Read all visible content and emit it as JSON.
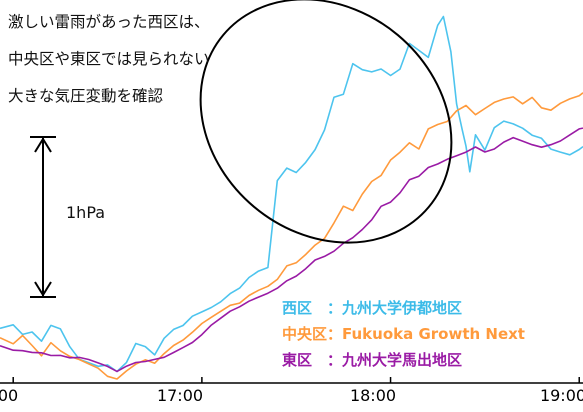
{
  "chart_data": {
    "type": "line",
    "title": "",
    "xlabel": "",
    "ylabel": "",
    "x_ticks": [
      "00",
      "17:00",
      "18:00",
      "19:00"
    ],
    "x_tick_hours": [
      16.0,
      17.0,
      18.0,
      19.0
    ],
    "xlim": [
      15.93,
      19.02
    ],
    "ylim": [
      0,
      2.9
    ],
    "grid": false,
    "legend_position": "bottom-right",
    "scale_bar": {
      "label": "1hPa",
      "value": 1.0,
      "from": 0.6,
      "to": 1.6
    },
    "series": [
      {
        "name": "西区\t：九州大学伊都地区",
        "color": "#4dc4ee",
        "points": [
          [
            15.93,
            0.42
          ],
          [
            16.0,
            0.45
          ],
          [
            16.05,
            0.38
          ],
          [
            16.1,
            0.4
          ],
          [
            16.15,
            0.33
          ],
          [
            16.2,
            0.45
          ],
          [
            16.25,
            0.42
          ],
          [
            16.3,
            0.28
          ],
          [
            16.35,
            0.18
          ],
          [
            16.4,
            0.15
          ],
          [
            16.45,
            0.12
          ],
          [
            16.5,
            0.13
          ],
          [
            16.55,
            0.08
          ],
          [
            16.6,
            0.15
          ],
          [
            16.65,
            0.3
          ],
          [
            16.7,
            0.28
          ],
          [
            16.75,
            0.22
          ],
          [
            16.8,
            0.35
          ],
          [
            16.85,
            0.42
          ],
          [
            16.9,
            0.45
          ],
          [
            16.95,
            0.52
          ],
          [
            17.0,
            0.55
          ],
          [
            17.05,
            0.58
          ],
          [
            17.1,
            0.62
          ],
          [
            17.15,
            0.68
          ],
          [
            17.2,
            0.72
          ],
          [
            17.25,
            0.8
          ],
          [
            17.3,
            0.85
          ],
          [
            17.35,
            0.88
          ],
          [
            17.4,
            1.55
          ],
          [
            17.45,
            1.65
          ],
          [
            17.5,
            1.62
          ],
          [
            17.55,
            1.7
          ],
          [
            17.6,
            1.8
          ],
          [
            17.65,
            1.95
          ],
          [
            17.7,
            2.2
          ],
          [
            17.75,
            2.22
          ],
          [
            17.8,
            2.45
          ],
          [
            17.85,
            2.4
          ],
          [
            17.9,
            2.38
          ],
          [
            17.95,
            2.4
          ],
          [
            18.0,
            2.35
          ],
          [
            18.05,
            2.4
          ],
          [
            18.1,
            2.6
          ],
          [
            18.15,
            2.55
          ],
          [
            18.2,
            2.5
          ],
          [
            18.25,
            2.75
          ],
          [
            18.28,
            2.82
          ],
          [
            18.32,
            2.55
          ],
          [
            18.35,
            2.15
          ],
          [
            18.38,
            1.95
          ],
          [
            18.4,
            1.82
          ],
          [
            18.42,
            1.62
          ],
          [
            18.45,
            1.9
          ],
          [
            18.5,
            1.78
          ],
          [
            18.55,
            1.95
          ],
          [
            18.6,
            2.0
          ],
          [
            18.65,
            1.98
          ],
          [
            18.7,
            1.95
          ],
          [
            18.75,
            1.9
          ],
          [
            18.8,
            1.88
          ],
          [
            18.85,
            1.8
          ],
          [
            18.9,
            1.78
          ],
          [
            18.95,
            1.76
          ],
          [
            19.0,
            1.8
          ],
          [
            19.02,
            1.82
          ]
        ]
      },
      {
        "name": "中央区：Fukuoka Growth Next",
        "color": "#ff9a3c",
        "points": [
          [
            15.93,
            0.35
          ],
          [
            16.0,
            0.3
          ],
          [
            16.05,
            0.36
          ],
          [
            16.1,
            0.28
          ],
          [
            16.15,
            0.2
          ],
          [
            16.2,
            0.3
          ],
          [
            16.25,
            0.24
          ],
          [
            16.3,
            0.2
          ],
          [
            16.35,
            0.18
          ],
          [
            16.4,
            0.15
          ],
          [
            16.45,
            0.12
          ],
          [
            16.5,
            0.06
          ],
          [
            16.55,
            0.04
          ],
          [
            16.6,
            0.1
          ],
          [
            16.65,
            0.15
          ],
          [
            16.7,
            0.18
          ],
          [
            16.75,
            0.15
          ],
          [
            16.8,
            0.22
          ],
          [
            16.85,
            0.28
          ],
          [
            16.9,
            0.32
          ],
          [
            16.95,
            0.38
          ],
          [
            17.0,
            0.45
          ],
          [
            17.05,
            0.5
          ],
          [
            17.1,
            0.55
          ],
          [
            17.15,
            0.6
          ],
          [
            17.2,
            0.62
          ],
          [
            17.25,
            0.68
          ],
          [
            17.3,
            0.72
          ],
          [
            17.35,
            0.75
          ],
          [
            17.4,
            0.8
          ],
          [
            17.45,
            0.9
          ],
          [
            17.5,
            0.92
          ],
          [
            17.55,
            0.98
          ],
          [
            17.6,
            1.05
          ],
          [
            17.65,
            1.1
          ],
          [
            17.7,
            1.22
          ],
          [
            17.75,
            1.35
          ],
          [
            17.8,
            1.32
          ],
          [
            17.85,
            1.45
          ],
          [
            17.9,
            1.55
          ],
          [
            17.95,
            1.6
          ],
          [
            18.0,
            1.72
          ],
          [
            18.05,
            1.78
          ],
          [
            18.1,
            1.85
          ],
          [
            18.15,
            1.8
          ],
          [
            18.2,
            1.95
          ],
          [
            18.25,
            1.98
          ],
          [
            18.3,
            2.0
          ],
          [
            18.35,
            2.08
          ],
          [
            18.4,
            2.12
          ],
          [
            18.45,
            2.05
          ],
          [
            18.5,
            2.1
          ],
          [
            18.55,
            2.15
          ],
          [
            18.6,
            2.18
          ],
          [
            18.65,
            2.2
          ],
          [
            18.7,
            2.15
          ],
          [
            18.75,
            2.2
          ],
          [
            18.8,
            2.12
          ],
          [
            18.85,
            2.1
          ],
          [
            18.9,
            2.15
          ],
          [
            18.95,
            2.18
          ],
          [
            19.0,
            2.2
          ],
          [
            19.02,
            2.22
          ]
        ]
      },
      {
        "name": "東区\t：九州大学馬出地区",
        "color": "#9a1ba5",
        "points": [
          [
            15.93,
            0.28
          ],
          [
            16.0,
            0.25
          ],
          [
            16.05,
            0.25
          ],
          [
            16.1,
            0.24
          ],
          [
            16.15,
            0.24
          ],
          [
            16.2,
            0.22
          ],
          [
            16.25,
            0.22
          ],
          [
            16.3,
            0.2
          ],
          [
            16.35,
            0.2
          ],
          [
            16.4,
            0.18
          ],
          [
            16.45,
            0.15
          ],
          [
            16.5,
            0.12
          ],
          [
            16.55,
            0.08
          ],
          [
            16.6,
            0.12
          ],
          [
            16.65,
            0.15
          ],
          [
            16.7,
            0.16
          ],
          [
            16.75,
            0.18
          ],
          [
            16.8,
            0.2
          ],
          [
            16.85,
            0.24
          ],
          [
            16.9,
            0.28
          ],
          [
            16.95,
            0.32
          ],
          [
            17.0,
            0.38
          ],
          [
            17.05,
            0.45
          ],
          [
            17.1,
            0.5
          ],
          [
            17.15,
            0.55
          ],
          [
            17.2,
            0.58
          ],
          [
            17.25,
            0.62
          ],
          [
            17.3,
            0.65
          ],
          [
            17.35,
            0.68
          ],
          [
            17.4,
            0.72
          ],
          [
            17.45,
            0.78
          ],
          [
            17.5,
            0.82
          ],
          [
            17.55,
            0.88
          ],
          [
            17.6,
            0.95
          ],
          [
            17.65,
            0.98
          ],
          [
            17.7,
            1.02
          ],
          [
            17.75,
            1.08
          ],
          [
            17.8,
            1.12
          ],
          [
            17.85,
            1.18
          ],
          [
            17.9,
            1.25
          ],
          [
            17.95,
            1.35
          ],
          [
            18.0,
            1.38
          ],
          [
            18.05,
            1.45
          ],
          [
            18.1,
            1.55
          ],
          [
            18.15,
            1.58
          ],
          [
            18.2,
            1.65
          ],
          [
            18.25,
            1.68
          ],
          [
            18.3,
            1.72
          ],
          [
            18.35,
            1.75
          ],
          [
            18.4,
            1.78
          ],
          [
            18.45,
            1.82
          ],
          [
            18.5,
            1.78
          ],
          [
            18.55,
            1.8
          ],
          [
            18.6,
            1.85
          ],
          [
            18.65,
            1.88
          ],
          [
            18.7,
            1.85
          ],
          [
            18.75,
            1.82
          ],
          [
            18.8,
            1.8
          ],
          [
            18.85,
            1.82
          ],
          [
            18.9,
            1.85
          ],
          [
            18.95,
            1.9
          ],
          [
            19.0,
            1.95
          ],
          [
            19.02,
            1.96
          ]
        ]
      }
    ],
    "annotation": [
      "激しい雷雨があった西区は、",
      "中央区や東区では見られない",
      "大きな気圧変動を確認"
    ]
  }
}
